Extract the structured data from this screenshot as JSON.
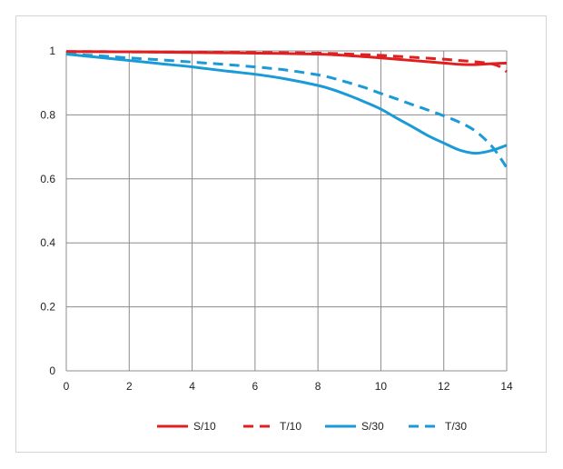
{
  "chart_data": {
    "type": "line",
    "title": "",
    "xlabel": "",
    "ylabel": "",
    "xlim": [
      0,
      14
    ],
    "ylim": [
      0,
      1
    ],
    "x_ticks": [
      0,
      2,
      4,
      6,
      8,
      10,
      12,
      14
    ],
    "y_ticks": [
      0,
      0.2,
      0.4,
      0.6,
      0.8,
      1
    ],
    "x_tick_labels": [
      "0",
      "2",
      "4",
      "6",
      "8",
      "10",
      "12",
      "14"
    ],
    "y_tick_labels": [
      "0",
      "0.2",
      "0.4",
      "0.6",
      "0.8",
      "1"
    ],
    "grid": true,
    "legend_position": "bottom",
    "series": [
      {
        "name": "S/10",
        "color": "#e02020",
        "dash": "solid",
        "x": [
          0,
          2,
          4,
          6,
          8,
          9,
          10,
          11,
          12,
          12.5,
          13,
          13.5,
          14
        ],
        "y": [
          0.998,
          0.997,
          0.995,
          0.993,
          0.99,
          0.985,
          0.978,
          0.97,
          0.962,
          0.958,
          0.957,
          0.96,
          0.962
        ]
      },
      {
        "name": "T/10",
        "color": "#e02020",
        "dash": "dashed",
        "x": [
          0,
          2,
          4,
          6,
          8,
          9,
          10,
          11,
          12,
          12.5,
          13,
          13.5,
          13.8,
          14
        ],
        "y": [
          0.998,
          0.997,
          0.996,
          0.995,
          0.993,
          0.99,
          0.986,
          0.98,
          0.974,
          0.97,
          0.966,
          0.96,
          0.95,
          0.935
        ]
      },
      {
        "name": "S/30",
        "color": "#1a9ad6",
        "dash": "solid",
        "x": [
          0,
          1,
          2,
          3,
          4,
          5,
          6,
          7,
          8,
          8.5,
          9,
          9.5,
          10,
          10.5,
          11,
          11.5,
          12,
          12.5,
          13,
          13.5,
          14
        ],
        "y": [
          0.99,
          0.98,
          0.97,
          0.96,
          0.95,
          0.938,
          0.927,
          0.912,
          0.892,
          0.878,
          0.86,
          0.84,
          0.818,
          0.79,
          0.763,
          0.735,
          0.712,
          0.69,
          0.68,
          0.688,
          0.705
        ]
      },
      {
        "name": "T/30",
        "color": "#1a9ad6",
        "dash": "dashed",
        "x": [
          0,
          1,
          2,
          3,
          4,
          5,
          6,
          7,
          8,
          8.5,
          9,
          9.5,
          10,
          10.5,
          11,
          11.5,
          12,
          12.5,
          13,
          13.5,
          13.8,
          14
        ],
        "y": [
          0.99,
          0.985,
          0.978,
          0.972,
          0.965,
          0.958,
          0.95,
          0.94,
          0.925,
          0.914,
          0.9,
          0.885,
          0.867,
          0.85,
          0.832,
          0.815,
          0.797,
          0.777,
          0.75,
          0.705,
          0.665,
          0.635
        ]
      }
    ]
  }
}
